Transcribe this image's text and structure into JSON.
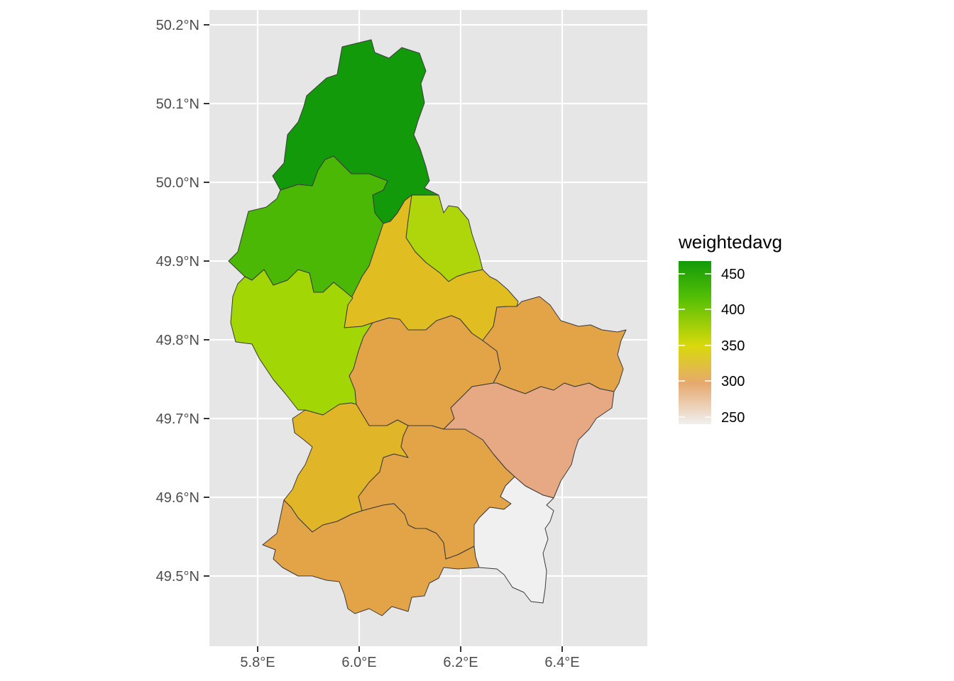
{
  "map": {
    "fill_variable": "weightedavg",
    "x_axis": {
      "ticks": [
        {
          "value": 5.8,
          "label": "5.8°E"
        },
        {
          "value": 6.0,
          "label": "6.0°E"
        },
        {
          "value": 6.2,
          "label": "6.2°E"
        },
        {
          "value": 6.4,
          "label": "6.4°E"
        }
      ],
      "range": [
        5.71,
        6.57
      ]
    },
    "y_axis": {
      "ticks": [
        {
          "value": 50.2,
          "label": "50.2°N"
        },
        {
          "value": 50.1,
          "label": "50.1°N"
        },
        {
          "value": 50.0,
          "label": "50.0°N"
        },
        {
          "value": 49.9,
          "label": "49.9°N"
        },
        {
          "value": 49.8,
          "label": "49.8°N"
        },
        {
          "value": 49.7,
          "label": "49.7°N"
        },
        {
          "value": 49.6,
          "label": "49.6°N"
        },
        {
          "value": 49.5,
          "label": "49.5°N"
        }
      ],
      "range": [
        49.42,
        50.22
      ]
    },
    "legend": {
      "title": "weightedavg",
      "labels": [
        "450",
        "400",
        "350",
        "300",
        "250"
      ],
      "color_stops": [
        {
          "value": 450,
          "color": "#139a0a"
        },
        {
          "value": 400,
          "color": "#52bf05"
        },
        {
          "value": 350,
          "color": "#d9d90c"
        },
        {
          "value": 300,
          "color": "#e6a96e"
        },
        {
          "value": 250,
          "color": "#f0f0f0"
        }
      ]
    },
    "panel_background": "#e6e6e6",
    "grid_color": "#ffffff",
    "regions": [
      {
        "id": "clervaux-wiltz-north",
        "color": "#139a0a"
      },
      {
        "id": "redange-wiltz",
        "color": "#4ab804"
      },
      {
        "id": "vianden",
        "color": "#aed60a"
      },
      {
        "id": "diekirch",
        "color": "#e0be22"
      },
      {
        "id": "redange",
        "color": "#a2d604"
      },
      {
        "id": "mersch",
        "color": "#e3a447"
      },
      {
        "id": "echternach",
        "color": "#e3a447"
      },
      {
        "id": "grevenmacher",
        "color": "#e7a884"
      },
      {
        "id": "capellen",
        "color": "#e0b528"
      },
      {
        "id": "luxembourg",
        "color": "#e3a447"
      },
      {
        "id": "esch",
        "color": "#e3a447"
      },
      {
        "id": "remich",
        "color": "#f0f0f0"
      }
    ]
  }
}
